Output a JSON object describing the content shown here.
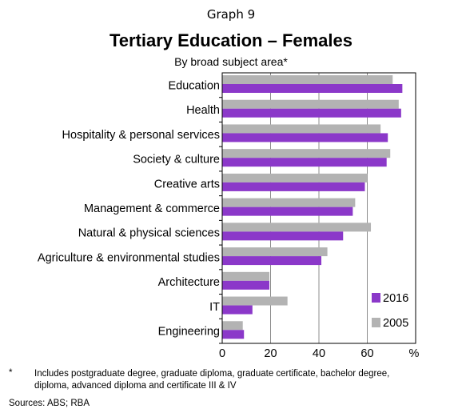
{
  "header": {
    "graph_number": "Graph 9",
    "title": "Tertiary Education – Females",
    "subtitle": "By broad subject area*"
  },
  "footer": {
    "footnote_marker": "*",
    "footnote": "Includes postgraduate degree, graduate diploma, graduate certificate, bachelor degree, diploma, advanced diploma and certificate III & IV",
    "sources": "Sources:  ABS; RBA"
  },
  "chart_data": {
    "type": "bar",
    "orientation": "horizontal",
    "title": "Tertiary Education – Females",
    "subtitle": "By broad subject area*",
    "xlabel": "%",
    "xlim": [
      0,
      80
    ],
    "xticks": [
      0,
      20,
      40,
      60
    ],
    "grid": true,
    "legend_position": "bottom-right",
    "categories": [
      "Education",
      "Health",
      "Hospitality & personal services",
      "Society & culture",
      "Creative arts",
      "Management & commerce",
      "Natural & physical sciences",
      "Agriculture & environmental studies",
      "Architecture",
      "IT",
      "Engineering"
    ],
    "series": [
      {
        "name": "2005",
        "color": "#b3b3b3",
        "values": [
          70.5,
          73,
          65.5,
          69.5,
          60,
          55,
          61.5,
          43.5,
          19.5,
          27,
          8.5
        ]
      },
      {
        "name": "2016",
        "color": "#8b38c9",
        "values": [
          74.5,
          74,
          68.5,
          68,
          59,
          54,
          50,
          41,
          19.5,
          12.5,
          9
        ]
      }
    ]
  }
}
